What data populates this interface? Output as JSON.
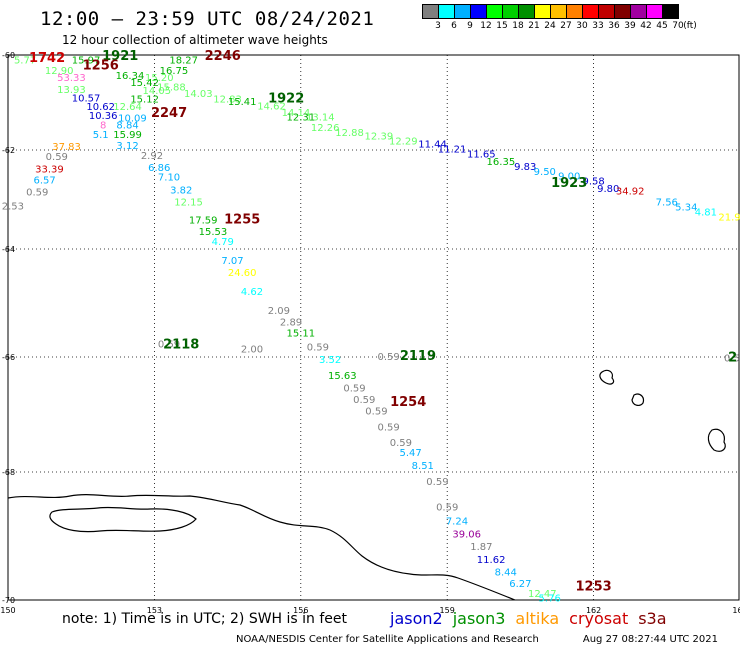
{
  "title": "12:00 – 23:59 UTC 08/24/2021",
  "subtitle": "12 hour collection of altimeter wave heights",
  "legend": {
    "colors": [
      "#7f7f7f",
      "#00ffff",
      "#00b0ff",
      "#0000ff",
      "#00ff00",
      "#00d000",
      "#009000",
      "#ffff00",
      "#ffc000",
      "#ff8000",
      "#ff0000",
      "#c00000",
      "#800000",
      "#a000a0",
      "#ff00ff",
      "#000000"
    ],
    "labels": [
      "3",
      "6",
      "9",
      "12",
      "15",
      "18",
      "21",
      "24",
      "27",
      "30",
      "33",
      "36",
      "39",
      "42",
      "45",
      "70",
      "(ft)"
    ]
  },
  "axes": {
    "x_ticks": [
      "150",
      "153",
      "156",
      "159",
      "162",
      "165"
    ],
    "y_ticks": [
      "-60",
      "-62",
      "-64",
      "-66",
      "-68",
      "-70"
    ]
  },
  "note": "note: 1) Time is in UTC; 2) SWH is in feet",
  "satellites": [
    {
      "name": "jason2",
      "color": "#0000cc"
    },
    {
      "name": "jason3",
      "color": "#009000"
    },
    {
      "name": "altika",
      "color": "#ff9900"
    },
    {
      "name": "cryosat",
      "color": "#cc0000"
    },
    {
      "name": "s3a",
      "color": "#800000"
    }
  ],
  "footer": {
    "credit": "NOAA/NESDIS Center for Satellite Applications and Research",
    "timestamp": "Aug 27 08:27:44 UTC 2021"
  },
  "time_labels": [
    {
      "text": "1742",
      "color": "#cc0000",
      "lon": 150.8,
      "lat": -60.15
    },
    {
      "text": "1921",
      "color": "#006000",
      "lon": 152.3,
      "lat": -60.1
    },
    {
      "text": "1256",
      "color": "#800000",
      "lon": 151.9,
      "lat": -60.3
    },
    {
      "text": "2246",
      "color": "#800000",
      "lon": 154.4,
      "lat": -60.1
    },
    {
      "text": "1922",
      "color": "#006000",
      "lon": 155.7,
      "lat": -61.0
    },
    {
      "text": "2247",
      "color": "#800000",
      "lon": 153.3,
      "lat": -61.3
    },
    {
      "text": "1923",
      "color": "#006000",
      "lon": 161.5,
      "lat": -62.75
    },
    {
      "text": "1255",
      "color": "#800000",
      "lon": 154.8,
      "lat": -63.48
    },
    {
      "text": "2118",
      "color": "#006000",
      "lon": 153.55,
      "lat": -65.84
    },
    {
      "text": "2119",
      "color": "#006000",
      "lon": 158.4,
      "lat": -66.05
    },
    {
      "text": "1254",
      "color": "#800000",
      "lon": 158.2,
      "lat": -66.85
    },
    {
      "text": "1253",
      "color": "#800000",
      "lon": 162.0,
      "lat": -69.85
    },
    {
      "text": "2",
      "color": "#006000",
      "lon": 164.85,
      "lat": -66.08
    }
  ],
  "wave_heights": [
    {
      "v": "5.77",
      "c": "#66ff66",
      "lon": 150.35,
      "lat": -60.18
    },
    {
      "v": "15.97",
      "c": "#00b000",
      "lon": 151.6,
      "lat": -60.18
    },
    {
      "v": "18.27",
      "c": "#00b000",
      "lon": 153.6,
      "lat": -60.18
    },
    {
      "v": "12.90",
      "c": "#66ff66",
      "lon": 151.05,
      "lat": -60.4
    },
    {
      "v": "16.75",
      "c": "#00b000",
      "lon": 153.4,
      "lat": -60.4
    },
    {
      "v": "53.33",
      "c": "#ff66cc",
      "lon": 151.3,
      "lat": -60.55
    },
    {
      "v": "16.34",
      "c": "#00b000",
      "lon": 152.5,
      "lat": -60.5
    },
    {
      "v": "15.20",
      "c": "#66ff66",
      "lon": 153.1,
      "lat": -60.55
    },
    {
      "v": "15.42",
      "c": "#00b000",
      "lon": 152.8,
      "lat": -60.65
    },
    {
      "v": "15.88",
      "c": "#66ff66",
      "lon": 153.35,
      "lat": -60.75
    },
    {
      "v": "13.93",
      "c": "#66ff66",
      "lon": 151.3,
      "lat": -60.8
    },
    {
      "v": "14.05",
      "c": "#66ff66",
      "lon": 153.05,
      "lat": -60.82
    },
    {
      "v": "14.03",
      "c": "#66ff66",
      "lon": 153.9,
      "lat": -60.88
    },
    {
      "v": "12.83",
      "c": "#66ff66",
      "lon": 154.5,
      "lat": -61.0
    },
    {
      "v": "10.57",
      "c": "#0000cc",
      "lon": 151.6,
      "lat": -60.98
    },
    {
      "v": "15.12",
      "c": "#00b000",
      "lon": 152.8,
      "lat": -61.0
    },
    {
      "v": "15.41",
      "c": "#00b000",
      "lon": 154.8,
      "lat": -61.05
    },
    {
      "v": "14.62",
      "c": "#66ff66",
      "lon": 155.4,
      "lat": -61.15
    },
    {
      "v": "14.14",
      "c": "#66ff66",
      "lon": 155.9,
      "lat": -61.28
    },
    {
      "v": "13.14",
      "c": "#66ff66",
      "lon": 156.4,
      "lat": -61.38
    },
    {
      "v": "12.31",
      "c": "#00b000",
      "lon": 156.0,
      "lat": -61.38
    },
    {
      "v": "10.62",
      "c": "#0000cc",
      "lon": 151.9,
      "lat": -61.16
    },
    {
      "v": "12.64",
      "c": "#66ff66",
      "lon": 152.45,
      "lat": -61.16
    },
    {
      "v": "10.36",
      "c": "#0000cc",
      "lon": 151.95,
      "lat": -61.35
    },
    {
      "v": "10.09",
      "c": "#00b0ff",
      "lon": 152.55,
      "lat": -61.4
    },
    {
      "v": "8.84",
      "c": "#00b0ff",
      "lon": 152.45,
      "lat": -61.55
    },
    {
      "v": "8",
      "c": "#ff66cc",
      "lon": 151.95,
      "lat": -61.55
    },
    {
      "v": "5.1",
      "c": "#00b0ff",
      "lon": 151.9,
      "lat": -61.75
    },
    {
      "v": "15.99",
      "c": "#00b000",
      "lon": 152.45,
      "lat": -61.75
    },
    {
      "v": "12.26",
      "c": "#66ff66",
      "lon": 156.5,
      "lat": -61.6
    },
    {
      "v": "12.88",
      "c": "#66ff66",
      "lon": 157.0,
      "lat": -61.7
    },
    {
      "v": "12.39",
      "c": "#66ff66",
      "lon": 157.6,
      "lat": -61.78
    },
    {
      "v": "12.29",
      "c": "#66ff66",
      "lon": 158.1,
      "lat": -61.88
    },
    {
      "v": "11.44",
      "c": "#0000cc",
      "lon": 158.7,
      "lat": -61.95
    },
    {
      "v": "11.21",
      "c": "#0000cc",
      "lon": 159.1,
      "lat": -62.05
    },
    {
      "v": "11.65",
      "c": "#0000cc",
      "lon": 159.7,
      "lat": -62.15
    },
    {
      "v": "37.83",
      "c": "#ff9900",
      "lon": 151.2,
      "lat": -62.0
    },
    {
      "v": "3.12",
      "c": "#00b0ff",
      "lon": 152.45,
      "lat": -61.98
    },
    {
      "v": "0.59",
      "c": "#7f7f7f",
      "lon": 151.0,
      "lat": -62.2
    },
    {
      "v": "2.92",
      "c": "#7f7f7f",
      "lon": 152.95,
      "lat": -62.18
    },
    {
      "v": "16.35",
      "c": "#00b000",
      "lon": 160.1,
      "lat": -62.3
    },
    {
      "v": "9.83",
      "c": "#0000cc",
      "lon": 160.6,
      "lat": -62.4
    },
    {
      "v": "9.50",
      "c": "#00b0ff",
      "lon": 161.0,
      "lat": -62.5
    },
    {
      "v": "9.00",
      "c": "#00b0ff",
      "lon": 161.5,
      "lat": -62.6
    },
    {
      "v": "9.58",
      "c": "#0000cc",
      "lon": 162.0,
      "lat": -62.7
    },
    {
      "v": "9.80",
      "c": "#0000cc",
      "lon": 162.3,
      "lat": -62.85
    },
    {
      "v": "34.92",
      "c": "#cc0000",
      "lon": 162.75,
      "lat": -62.9
    },
    {
      "v": "33.39",
      "c": "#cc0000",
      "lon": 150.85,
      "lat": -62.45
    },
    {
      "v": "6.86",
      "c": "#00b0ff",
      "lon": 153.1,
      "lat": -62.42
    },
    {
      "v": "6.57",
      "c": "#00b0ff",
      "lon": 150.75,
      "lat": -62.68
    },
    {
      "v": "7.10",
      "c": "#00b0ff",
      "lon": 153.3,
      "lat": -62.62
    },
    {
      "v": "0.59",
      "c": "#7f7f7f",
      "lon": 150.6,
      "lat": -62.92
    },
    {
      "v": "3.82",
      "c": "#00b0ff",
      "lon": 153.55,
      "lat": -62.88
    },
    {
      "v": "12.15",
      "c": "#66ff66",
      "lon": 153.7,
      "lat": -63.12
    },
    {
      "v": "7.56",
      "c": "#00b0ff",
      "lon": 163.5,
      "lat": -63.12
    },
    {
      "v": "5.34",
      "c": "#00b0ff",
      "lon": 163.9,
      "lat": -63.22
    },
    {
      "v": "4.81",
      "c": "#00ffff",
      "lon": 164.3,
      "lat": -63.32
    },
    {
      "v": "21.96",
      "c": "#ffff00",
      "lon": 164.85,
      "lat": -63.42
    },
    {
      "v": "9.37",
      "c": "#0000cc",
      "lon": 165.7,
      "lat": -63.6
    },
    {
      "v": "2.53",
      "c": "#7f7f7f",
      "lon": 150.1,
      "lat": -63.2
    },
    {
      "v": "17.59",
      "c": "#00b000",
      "lon": 154.0,
      "lat": -63.48
    },
    {
      "v": "15.53",
      "c": "#00b000",
      "lon": 154.2,
      "lat": -63.72
    },
    {
      "v": "0.59",
      "c": "#7f7f7f",
      "lon": 149.6,
      "lat": -63.7
    },
    {
      "v": "4.79",
      "c": "#00ffff",
      "lon": 154.4,
      "lat": -63.92
    },
    {
      "v": "7.07",
      "c": "#00b0ff",
      "lon": 154.6,
      "lat": -64.28
    },
    {
      "v": "24.60",
      "c": "#ffff00",
      "lon": 154.8,
      "lat": -64.5
    },
    {
      "v": "4.62",
      "c": "#00ffff",
      "lon": 155.0,
      "lat": -64.85
    },
    {
      "v": "2.09",
      "c": "#7f7f7f",
      "lon": 155.55,
      "lat": -65.2
    },
    {
      "v": "2.89",
      "c": "#7f7f7f",
      "lon": 155.8,
      "lat": -65.42
    },
    {
      "v": "15.11",
      "c": "#00b000",
      "lon": 156.0,
      "lat": -65.62
    },
    {
      "v": "0.59",
      "c": "#7f7f7f",
      "lon": 153.3,
      "lat": -65.82
    },
    {
      "v": "2.00",
      "c": "#7f7f7f",
      "lon": 155.0,
      "lat": -65.92
    },
    {
      "v": "0.59",
      "c": "#7f7f7f",
      "lon": 156.35,
      "lat": -65.88
    },
    {
      "v": "3.52",
      "c": "#00ffff",
      "lon": 156.6,
      "lat": -66.1
    },
    {
      "v": "0.59",
      "c": "#7f7f7f",
      "lon": 157.8,
      "lat": -66.05
    },
    {
      "v": "15.63",
      "c": "#00b000",
      "lon": 156.85,
      "lat": -66.38
    },
    {
      "v": "0.59",
      "c": "#7f7f7f",
      "lon": 157.1,
      "lat": -66.6
    },
    {
      "v": "0.59",
      "c": "#7f7f7f",
      "lon": 157.3,
      "lat": -66.8
    },
    {
      "v": "0.59",
      "c": "#7f7f7f",
      "lon": 157.55,
      "lat": -67.0
    },
    {
      "v": "0.59",
      "c": "#7f7f7f",
      "lon": 157.8,
      "lat": -67.28
    },
    {
      "v": "0.59",
      "c": "#7f7f7f",
      "lon": 158.05,
      "lat": -67.55
    },
    {
      "v": "5.47",
      "c": "#00b0ff",
      "lon": 158.25,
      "lat": -67.72
    },
    {
      "v": "8.51",
      "c": "#00b0ff",
      "lon": 158.5,
      "lat": -67.95
    },
    {
      "v": "0.59",
      "c": "#7f7f7f",
      "lon": 164.9,
      "lat": -66.08
    },
    {
      "v": "0.59",
      "c": "#7f7f7f",
      "lon": 158.8,
      "lat": -68.2
    },
    {
      "v": "0.59",
      "c": "#7f7f7f",
      "lon": 159.0,
      "lat": -68.6
    },
    {
      "v": "7.24",
      "c": "#00b0ff",
      "lon": 159.2,
      "lat": -68.82
    },
    {
      "v": "39.06",
      "c": "#990099",
      "lon": 159.4,
      "lat": -69.02
    },
    {
      "v": "1.87",
      "c": "#7f7f7f",
      "lon": 159.7,
      "lat": -69.22
    },
    {
      "v": "11.62",
      "c": "#0000cc",
      "lon": 159.9,
      "lat": -69.42
    },
    {
      "v": "8.44",
      "c": "#00b0ff",
      "lon": 160.2,
      "lat": -69.62
    },
    {
      "v": "6.27",
      "c": "#00b0ff",
      "lon": 160.5,
      "lat": -69.8
    },
    {
      "v": "12.47",
      "c": "#66ff66",
      "lon": 160.95,
      "lat": -69.95
    },
    {
      "v": "5.76",
      "c": "#00ffff",
      "lon": 161.1,
      "lat": -70.02
    }
  ]
}
